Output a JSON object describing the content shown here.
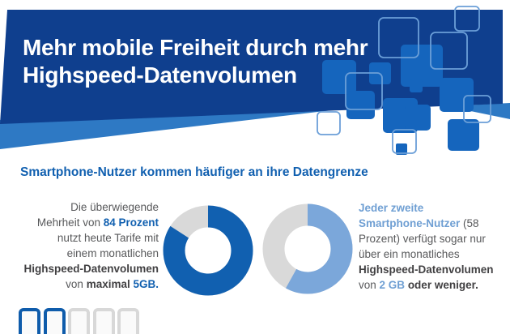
{
  "header": {
    "title_line1": "Mehr mobile Freiheit durch mehr",
    "title_line2": "Highspeed-Datenvolumen"
  },
  "subheading": "Smartphone-Nutzer kommen häufiger an ihre Datengrenze",
  "colors": {
    "banner_navy": "#0f3f8e",
    "wedge_light_blue": "#2e79c4",
    "square_fill_blue": "#1565bd",
    "square_outline_blue": "#6b9fd8",
    "accent_blue": "#1160b0",
    "light_blue": "#7ba7da",
    "donut_gray": "#d9d9d9",
    "body_text_gray": "#58595b",
    "body_text_dark": "#414042",
    "phone_blue": "#0f5cab",
    "phone_gray": "#d8d8d8"
  },
  "stats": {
    "left": {
      "lines": [
        [
          {
            "t": "Die überwiegende",
            "s": "n"
          }
        ],
        [
          {
            "t": "Mehrheit von ",
            "s": "n"
          },
          {
            "t": "84 Prozent",
            "s": "bb"
          }
        ],
        [
          {
            "t": "nutzt heute Tarife mit",
            "s": "n"
          }
        ],
        [
          {
            "t": "einem monatlichen",
            "s": "n"
          }
        ],
        [
          {
            "t": "Highspeed-Datenvolumen",
            "s": "db"
          }
        ],
        [
          {
            "t": "von ",
            "s": "n"
          },
          {
            "t": "maximal ",
            "s": "db"
          },
          {
            "t": "5GB.",
            "s": "bb"
          }
        ]
      ]
    },
    "right": {
      "lines": [
        [
          {
            "t": "Jeder zweite",
            "s": "lb"
          }
        ],
        [
          {
            "t": "Smartphone-Nutzer",
            "s": "lb"
          },
          {
            "t": " (58",
            "s": "n"
          }
        ],
        [
          {
            "t": "Prozent) verfügt sogar nur",
            "s": "n"
          }
        ],
        [
          {
            "t": "über ein monatliches",
            "s": "n"
          }
        ],
        [
          {
            "t": "Highspeed-Datenvolumen",
            "s": "db"
          }
        ],
        [
          {
            "t": "von ",
            "s": "n"
          },
          {
            "t": "2 GB",
            "s": "lb"
          },
          {
            "t": " ",
            "s": "n"
          },
          {
            "t": "oder weniger.",
            "s": "db"
          }
        ]
      ]
    }
  },
  "chart_data": [
    {
      "type": "pie",
      "subtype": "donut",
      "labels": [
        "84 Prozent",
        "Rest"
      ],
      "values": [
        84,
        16
      ],
      "colors": [
        "#1160b0",
        "#d9d9d9"
      ],
      "start": "top",
      "direction": "clockwise"
    },
    {
      "type": "pie",
      "subtype": "donut",
      "labels": [
        "58 Prozent",
        "Rest"
      ],
      "values": [
        58,
        42
      ],
      "colors": [
        "#7ba7da",
        "#d9d9d9"
      ],
      "start": "top",
      "direction": "clockwise"
    }
  ],
  "phones": {
    "count": 5,
    "highlighted": 2
  }
}
